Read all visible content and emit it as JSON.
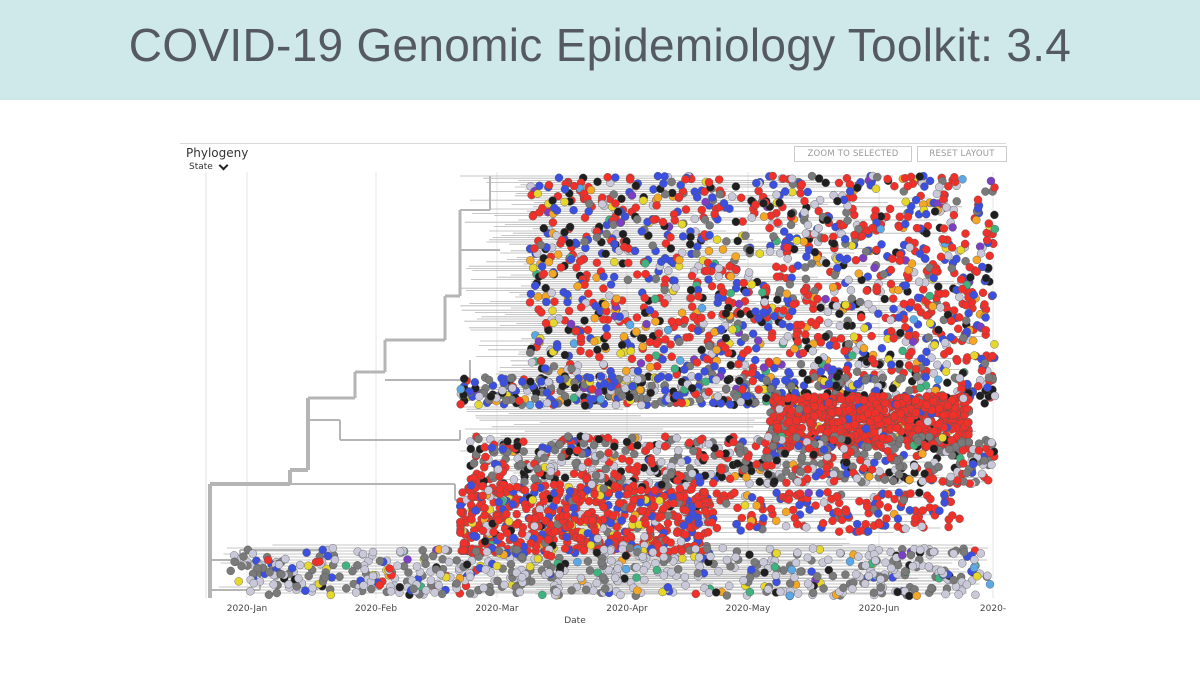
{
  "slide": {
    "title": "COVID-19 Genomic Epidemiology Toolkit: 3.4"
  },
  "panel": {
    "title": "Phylogeny",
    "color_by": "State",
    "buttons": {
      "zoom_to_selected": "ZOOM TO SELECTED",
      "reset_layout": "RESET LAYOUT"
    }
  },
  "chart_data": {
    "type": "scatter",
    "title": "Phylogeny",
    "xlabel": "Date",
    "ylabel": "",
    "x_ticks": [
      "2020-Jan",
      "2020-Feb",
      "2020-Mar",
      "2020-Apr",
      "2020-May",
      "2020-Jun",
      "2020-"
    ],
    "grid": true,
    "colors": {
      "tip_colors": [
        "#f2302a",
        "#3b4fe0",
        "#1f1f1f",
        "#7a7a7a",
        "#c9c9d9",
        "#f5a623",
        "#e6d72a",
        "#3fb37f",
        "#7b3fc4",
        "#5aa8e6"
      ],
      "branch": "#b5b5b5",
      "grid": "#e6e6e6"
    }
  }
}
